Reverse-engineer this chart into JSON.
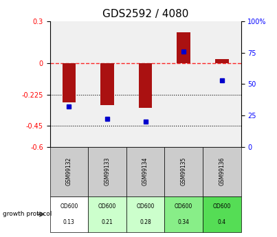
{
  "title": "GDS2592 / 4080",
  "samples": [
    "GSM99132",
    "GSM99133",
    "GSM99134",
    "GSM99135",
    "GSM99136"
  ],
  "log2_ratio": [
    -0.28,
    -0.3,
    -0.32,
    0.22,
    0.03
  ],
  "percentile_rank": [
    32,
    22,
    20,
    76,
    53
  ],
  "protocol_label": "growth protocol",
  "od600_values": [
    "0.13",
    "0.21",
    "0.28",
    "0.34",
    "0.4"
  ],
  "cell_colors": [
    "#ffffff",
    "#ccffcc",
    "#ccffcc",
    "#88ee88",
    "#55dd55"
  ],
  "bar_color": "#aa1111",
  "dot_color": "#0000cc",
  "left_ylim": [
    -0.6,
    0.3
  ],
  "right_ylim": [
    0,
    100
  ],
  "left_yticks": [
    0.3,
    0,
    -0.225,
    -0.45,
    -0.6
  ],
  "right_yticks": [
    100,
    75,
    50,
    25,
    0
  ],
  "dotted_lines": [
    -0.225,
    -0.45
  ],
  "background_color": "#ffffff",
  "plot_bg_color": "#f0f0f0"
}
